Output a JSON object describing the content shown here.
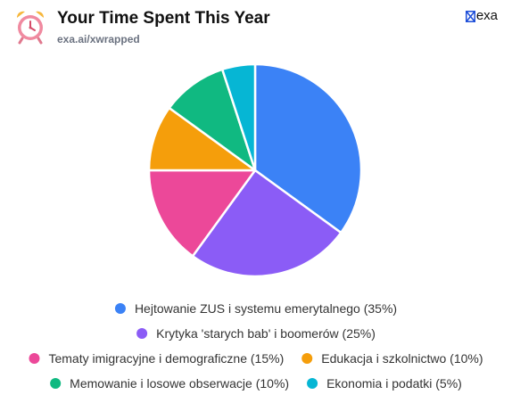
{
  "header": {
    "title": "Your Time Spent This Year",
    "subtitle": "exa.ai/xwrapped",
    "brand": "exa",
    "app_icon": "alarm-clock-icon",
    "brand_icon": "exa-logo-icon"
  },
  "chart_data": {
    "type": "pie",
    "title": "Your Time Spent This Year",
    "slices": [
      {
        "label": "Hejtowanie ZUS i systemu emerytalnego (35%)",
        "value": 35,
        "color": "#3b82f6"
      },
      {
        "label": "Krytyka 'starych bab' i boomerów (25%)",
        "value": 25,
        "color": "#8b5cf6"
      },
      {
        "label": "Tematy imigracyjne i demograficzne (15%)",
        "value": 15,
        "color": "#ec4899"
      },
      {
        "label": "Edukacja i szkolnictwo (10%)",
        "value": 10,
        "color": "#f59e0b"
      },
      {
        "label": "Memowanie i losowe obserwacje (10%)",
        "value": 10,
        "color": "#10b981"
      },
      {
        "label": "Ekonomia i podatki (5%)",
        "value": 5,
        "color": "#06b6d4"
      }
    ],
    "legend_position": "bottom",
    "start_angle": "top",
    "direction": "clockwise"
  }
}
